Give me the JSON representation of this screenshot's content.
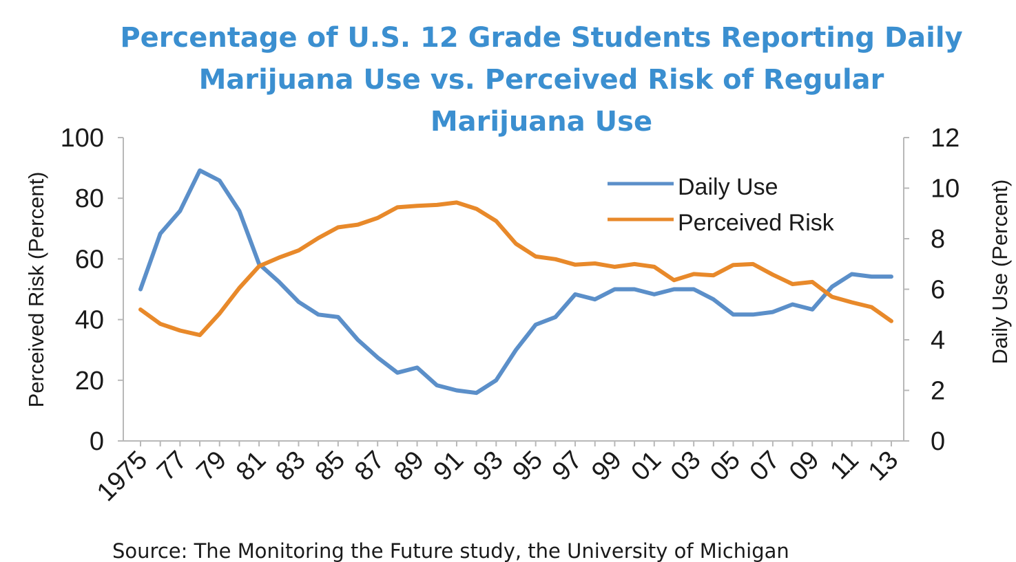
{
  "chart_data": {
    "type": "line",
    "title_lines": [
      "Percentage of U.S. 12 Grade Students Reporting Daily",
      "Marijuana Use vs. Perceived Risk of Regular",
      "Marijuana Use"
    ],
    "source": "Source: The Monitoring the Future study, the University of Michigan",
    "x": [
      1975,
      1976,
      1977,
      1978,
      1979,
      1980,
      1981,
      1982,
      1983,
      1984,
      1985,
      1986,
      1987,
      1988,
      1989,
      1990,
      1991,
      1992,
      1993,
      1994,
      1995,
      1996,
      1997,
      1998,
      1999,
      2000,
      2001,
      2002,
      2003,
      2004,
      2005,
      2006,
      2007,
      2008,
      2009,
      2010,
      2011,
      2012,
      2013
    ],
    "x_tick_labels": [
      "1975",
      "77",
      "79",
      "81",
      "83",
      "85",
      "87",
      "89",
      "91",
      "93",
      "95",
      "97",
      "99",
      "01",
      "03",
      "05",
      "07",
      "09",
      "11",
      "13"
    ],
    "y_left": {
      "label": "Perceived Risk (Percent)",
      "range": [
        0,
        100
      ],
      "ticks": [
        "0",
        "20",
        "40",
        "60",
        "80",
        "100"
      ]
    },
    "y_right": {
      "label": "Daily Use (Percent)",
      "range": [
        0,
        12
      ],
      "ticks": [
        "0",
        "2",
        "4",
        "6",
        "8",
        "10",
        "12"
      ]
    },
    "series": [
      {
        "name": "Daily Use",
        "axis": "right",
        "color": "#5b8fc9",
        "values": [
          6.0,
          8.2,
          9.1,
          10.7,
          10.3,
          9.1,
          7.0,
          6.3,
          5.5,
          5.0,
          4.9,
          4.0,
          3.3,
          2.7,
          2.9,
          2.2,
          2.0,
          1.9,
          2.4,
          3.6,
          4.6,
          4.9,
          5.8,
          5.6,
          6.0,
          6.0,
          5.8,
          6.0,
          6.0,
          5.6,
          5.0,
          5.0,
          5.1,
          5.4,
          5.2,
          6.1,
          6.6,
          6.5,
          6.5
        ]
      },
      {
        "name": "Perceived Risk",
        "axis": "left",
        "color": "#e8892a",
        "values": [
          43.3,
          38.6,
          36.4,
          34.9,
          42.0,
          50.4,
          57.6,
          60.4,
          62.8,
          66.9,
          70.4,
          71.3,
          73.5,
          77.0,
          77.5,
          77.8,
          78.6,
          76.5,
          72.5,
          65.0,
          60.8,
          59.9,
          58.1,
          58.5,
          57.4,
          58.3,
          57.4,
          53.0,
          55.0,
          54.6,
          58.0,
          58.3,
          54.8,
          51.7,
          52.4,
          47.5,
          45.7,
          44.1,
          39.5
        ]
      }
    ],
    "legend_position": "top-right",
    "grid": false
  }
}
